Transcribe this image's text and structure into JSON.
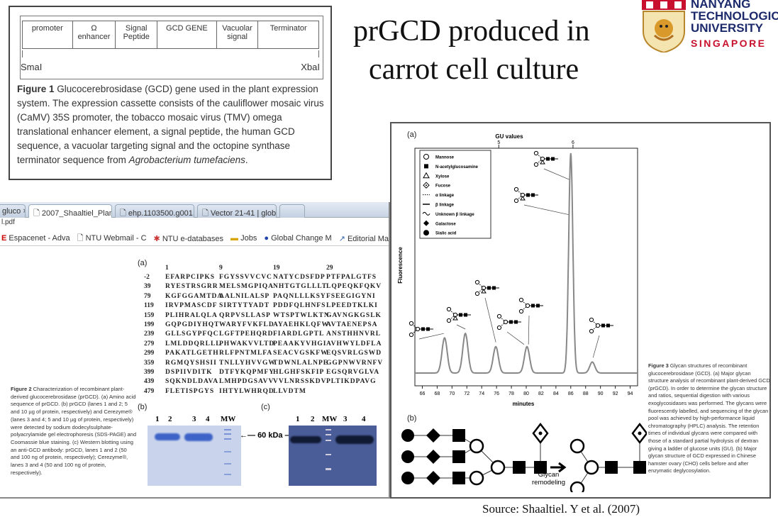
{
  "slide": {
    "title_line1": "prGCD produced in",
    "title_line2": "carrot cell culture",
    "source": "Source: Shaaltiel. Y et al. (2007)"
  },
  "logo": {
    "lines": [
      "NANYANG",
      "TECHNOLOGICAL",
      "UNIVERSITY"
    ],
    "country": "SINGAPORE"
  },
  "figure1": {
    "cells": [
      "promoter",
      "Ω\nenhancer",
      "Signal\nPeptide",
      "GCD GENE",
      "Vacuolar\nsignal",
      "Terminator"
    ],
    "site_left": "SmaI",
    "site_right": "XbaI",
    "caption_label": "Figure 1",
    "caption_text": "Glucocerebrosidase (GCD) gene used in the plant expression system. The expression cassette consists of the cauliflower mosaic virus (CaMV) 35S promoter, the tobacco mosaic virus (TMV) omega translational enhancer element, a signal peptide, the human GCD sequence, a vacuolar targeting signal and the octopine synthase terminator sequence from ",
    "caption_italic": "Agrobacterium tumefaciens",
    "caption_end": "."
  },
  "browser": {
    "tabs": [
      {
        "label": "gluco",
        "close": "×"
      },
      {
        "label": "2007_Shaaltiel_Plant",
        "close": "×",
        "active": true
      },
      {
        "label": "ehp.1103500.g001.p",
        "close": "×"
      },
      {
        "label": "Vector 21-41 | glob",
        "close": "×"
      }
    ],
    "url": "l.pdf",
    "bookmarks": [
      "Espacenet - Adva",
      "NTU Webmail - C",
      "NTU e-databases",
      "Jobs",
      "Global Change M",
      "Editorial Manage",
      "Jo"
    ]
  },
  "figure2": {
    "panel_a": "(a)",
    "panel_b": "(b)",
    "panel_c": "(c)",
    "seq_header": [
      "1",
      "9",
      "19",
      "29"
    ],
    "sequence": [
      {
        "n": "-2",
        "b": [
          "EFARPCIPKS",
          "FGYSSVVCVC",
          "NATYCDSFDP",
          "PTFPALGTFS"
        ]
      },
      {
        "n": "39",
        "b": [
          "RYESTRSGRR",
          "MELSMGPIQA",
          "NHTGTGLLLT",
          "LQPEQKFQKV"
        ]
      },
      {
        "n": "79",
        "b": [
          "KGFGGAMTDA",
          "AALNILALSP",
          "PAQNLLLKSY",
          "FSEEGIGYNI"
        ]
      },
      {
        "n": "119",
        "b": [
          "IRVPMASCDF",
          "SIRTYTYADT",
          "PDDFQLHNFS",
          "LPEEDTKLKI"
        ]
      },
      {
        "n": "159",
        "b": [
          "PLIHRALQLA",
          "QRPVSLLASP",
          "WTSPTWLKTN",
          "GAVNGKGSLK"
        ]
      },
      {
        "n": "199",
        "b": [
          "GQPGDIYHQT",
          "WARYFVKFLD",
          "AYAEHKLQFW",
          "AVTAENEPSA"
        ]
      },
      {
        "n": "239",
        "b": [
          "GLLSGYPFQC",
          "LGFTPEHQRD",
          "FIARDLGPTL",
          "ANSTHHNVRL"
        ]
      },
      {
        "n": "279",
        "b": [
          "LMLDDQRLLL",
          "PHWAKVVLTD",
          "PEAAKYVHGI",
          "AVHWYLDFLA"
        ]
      },
      {
        "n": "299",
        "b": [
          "PAKATLGETH",
          "RLFPNTMLFA",
          "SEACVGSKFW",
          "EQSVRLGSWD"
        ]
      },
      {
        "n": "359",
        "b": [
          "RGMQYSHSII",
          "TNLLYHVVGW",
          "TDWNLALNPE",
          "GGPNWVRNFV"
        ]
      },
      {
        "n": "399",
        "b": [
          "DSPIIVDITK",
          "DTFYKQPMFY",
          "HLGHFSKFIP",
          "EGSQRVGLVA"
        ]
      },
      {
        "n": "439",
        "b": [
          "SQKNDLDAVA",
          "LMHPDGSAVV",
          "VVLNRSSKDV",
          "PLTIKDPAVG"
        ]
      },
      {
        "n": "479",
        "b": [
          "FLETISPGYS",
          "IHTYLWHRQD",
          "LLVDTM",
          ""
        ]
      }
    ],
    "gel_b_lanes": [
      "1",
      "2",
      "3",
      "4",
      "MW"
    ],
    "gel_c_lanes": [
      "1",
      "2",
      "MW",
      "3",
      "4"
    ],
    "marker_label": "60 kDa",
    "caption_label": "Figure 2",
    "caption_text": "Characterization of recombinant plant-derived glucocerebrosidase (prGCD). (a) Amino acid sequence of prGCD. (b) prGCD (lanes 1 and 2; 5 and 10 µg of protein, respectively) and Cerezyme® (lanes 3 and 4; 5 and 10 µg of protein, respectively) were detected by sodium dodecylsulphate-polyacrylamide gel electrophoresis (SDS-PAGE) and Coomassie blue staining. (c) Western blotting using an anti-GCD antibody: prGCD, lanes 1 and 2 (50 and 100 ng of protein, respectively); Cerezyme®, lanes 3 and 4 (50 and 100 ng of protein, respectively)."
  },
  "figure3": {
    "panel_a": "(a)",
    "panel_b": "(b)",
    "legend": [
      {
        "symbol": "open-circle",
        "label": "Mannose"
      },
      {
        "symbol": "filled-square",
        "label": "N-acetylglucosamine"
      },
      {
        "symbol": "open-triangle",
        "label": "Xylose"
      },
      {
        "symbol": "dotted-diamond",
        "label": "Fucose"
      },
      {
        "symbol": "dotted-line",
        "label": "α linkage"
      },
      {
        "symbol": "solid-line",
        "label": "β linkage"
      },
      {
        "symbol": "wavy-line",
        "label": "Unknown β linkage"
      },
      {
        "symbol": "filled-diamond",
        "label": "Galactose"
      },
      {
        "symbol": "filled-circle",
        "label": "Sialic acid"
      }
    ],
    "remodel_label": "Glycan\nremodeling",
    "caption_label": "Figure 3",
    "caption_text": "Glycan structures of recombinant glucocerebrosidase (GCD). (a) Major glycan structure analysis of recombinant plant-derived GCD (prGCD). In order to determine the glycan structure and ratios, sequential digestion with various exoglycosidases was performed. The glycans were fluorescently labelled, and sequencing of the glycan pool was achieved by high-performance liquid chromatography (HPLC) analysis. The retention times of individual glycans were compared with those of a standard partial hydrolysis of dextran giving a ladder of glucose units (GU). (b) Major glycan structure of GCD expressed in Chinese hamster ovary (CHO) cells before and after enzymatic deglycosylation."
  },
  "chart_data": {
    "type": "line",
    "xlabel": "minutes",
    "ylabel": "Fluorescence",
    "top_axis_label": "GU values",
    "top_ticks": [
      {
        "label": "5",
        "x": 76.3
      },
      {
        "label": "6",
        "x": 86.3
      }
    ],
    "xlim": [
      65,
      95
    ],
    "xticks": [
      66,
      68,
      70,
      72,
      74,
      76,
      78,
      80,
      82,
      84,
      86,
      88,
      90,
      92,
      94
    ],
    "grid": false,
    "legend": "top-left",
    "color": "#888888",
    "peaks": [
      {
        "x": 69.0,
        "y": 16
      },
      {
        "x": 71.8,
        "y": 18
      },
      {
        "x": 75.9,
        "y": 12
      },
      {
        "x": 80.1,
        "y": 12
      },
      {
        "x": 86.0,
        "y": 100
      },
      {
        "x": 88.9,
        "y": 5
      }
    ]
  }
}
